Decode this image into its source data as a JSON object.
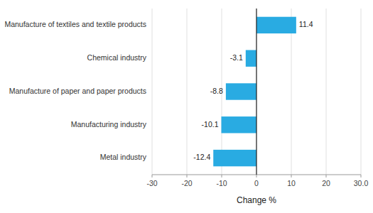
{
  "chart_data": {
    "type": "bar",
    "orientation": "horizontal",
    "categories": [
      "Metal industry",
      "Manufacturing industry",
      "Manufacture of paper and paper products",
      "Chemical industry",
      "Manufacture of textiles and textile products"
    ],
    "values": [
      -12.4,
      -10.1,
      -8.8,
      -3.1,
      11.4
    ],
    "color": "#29ABE2",
    "xlabel": "Change %",
    "xlim": [
      -30,
      30
    ],
    "xticks": [
      -30,
      -20,
      -10,
      0,
      10,
      20,
      {
        "value": 30,
        "label": "30.0"
      }
    ],
    "grid": true,
    "data_labels": true
  }
}
